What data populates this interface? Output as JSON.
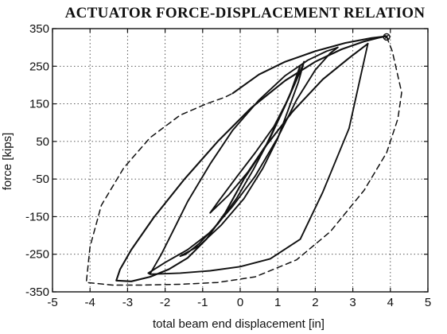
{
  "chart_data": {
    "type": "line",
    "title": "ACTUATOR FORCE-DISPLACEMENT RELATION",
    "xlabel": "total beam end displacement [in]",
    "ylabel": "force [kips]",
    "xlim": [
      -5,
      5
    ],
    "ylim": [
      -350,
      350
    ],
    "x_ticks": [
      -5,
      -4,
      -3,
      -2,
      -1,
      0,
      1,
      2,
      3,
      4,
      5
    ],
    "y_ticks": [
      -350,
      -250,
      -150,
      -50,
      50,
      150,
      250,
      350
    ],
    "x_tick_labels": [
      "-5",
      "-4",
      "-3",
      "-2",
      "-1",
      "0",
      "1",
      "2",
      "3",
      "4",
      "5"
    ],
    "y_tick_labels": [
      "-350",
      "-250",
      "-150",
      "-50",
      "50",
      "150",
      "250",
      "350"
    ],
    "grid": true,
    "colors": {
      "line": "#111111",
      "grid": "#444444",
      "background": "#ffffff"
    },
    "series": [
      {
        "style": "dashed",
        "x": [
          3.9,
          4.05,
          4.3,
          4.2,
          3.9,
          3.3,
          2.4,
          1.5,
          0.4,
          -0.6,
          -1.6,
          -2.6,
          -3.4,
          -4.1,
          -4.0,
          -3.7,
          -3.1,
          -2.4,
          -1.6,
          -0.9,
          -0.4,
          -0.2
        ],
        "y": [
          328,
          290,
          180,
          110,
          20,
          -80,
          -190,
          -265,
          -310,
          -325,
          -330,
          -332,
          -332,
          -325,
          -230,
          -120,
          -20,
          60,
          120,
          150,
          168,
          178
        ]
      },
      {
        "style": "solid",
        "x": [
          -0.2,
          0.5,
          1.2,
          2.0,
          2.8,
          3.5,
          3.9
        ],
        "y": [
          178,
          228,
          262,
          290,
          312,
          325,
          330
        ]
      },
      {
        "style": "solid",
        "x": [
          3.9,
          3.7,
          3.3,
          2.7,
          2.0,
          1.2,
          0.3,
          -0.6,
          -1.5,
          -2.3,
          -2.9,
          -3.2,
          -3.3,
          -2.9,
          -2.4,
          -1.9,
          -1.4,
          -0.9,
          -0.4,
          0.1,
          0.7,
          1.4,
          2.2,
          2.9,
          3.4
        ],
        "y": [
          330,
          326,
          316,
          295,
          262,
          212,
          140,
          50,
          -52,
          -152,
          -238,
          -290,
          -320,
          -322,
          -310,
          -290,
          -260,
          -210,
          -140,
          -50,
          40,
          130,
          215,
          272,
          310
        ]
      },
      {
        "style": "solid",
        "x": [
          3.4,
          2.9,
          2.2,
          1.6,
          0.8,
          0.0,
          -0.8,
          -1.6,
          -2.1,
          -2.4,
          -2.45,
          -2.0,
          -1.4,
          -0.8,
          -0.2,
          0.4,
          1.0,
          1.5,
          2.0,
          2.4,
          2.6
        ],
        "y": [
          310,
          85,
          -85,
          -210,
          -262,
          -283,
          -294,
          -300,
          -302,
          -303,
          -300,
          -272,
          -238,
          -192,
          -122,
          -42,
          60,
          160,
          240,
          285,
          300
        ]
      },
      {
        "style": "solid",
        "x": [
          2.6,
          2.3,
          1.8,
          1.2,
          0.5,
          -0.2,
          -0.8,
          -1.4,
          -1.7,
          -2.1,
          -2.4
        ],
        "y": [
          300,
          290,
          266,
          225,
          160,
          80,
          -10,
          -110,
          -170,
          -250,
          -302
        ]
      },
      {
        "style": "solid",
        "x": [
          -1.6,
          -1.1,
          -0.5,
          0.1,
          0.6,
          1.0,
          1.3,
          1.55,
          1.7,
          1.55,
          1.2,
          0.8,
          0.35,
          -0.1,
          -0.6,
          -1.1,
          -1.45,
          -1.6
        ],
        "y": [
          -255,
          -228,
          -172,
          -102,
          -22,
          58,
          140,
          208,
          262,
          225,
          145,
          60,
          -25,
          -102,
          -170,
          -222,
          -250,
          -255
        ]
      },
      {
        "style": "solid",
        "x": [
          -0.8,
          -0.3,
          0.2,
          0.7,
          1.1,
          1.5,
          1.6,
          1.3,
          0.9,
          0.4,
          -0.1,
          -0.6,
          -0.8
        ],
        "y": [
          -140,
          -92,
          -32,
          42,
          125,
          215,
          252,
          168,
          90,
          20,
          -45,
          -112,
          -140
        ]
      }
    ],
    "markers": [
      {
        "symbol": "circle-x",
        "x": 3.9,
        "y": 328
      }
    ]
  }
}
